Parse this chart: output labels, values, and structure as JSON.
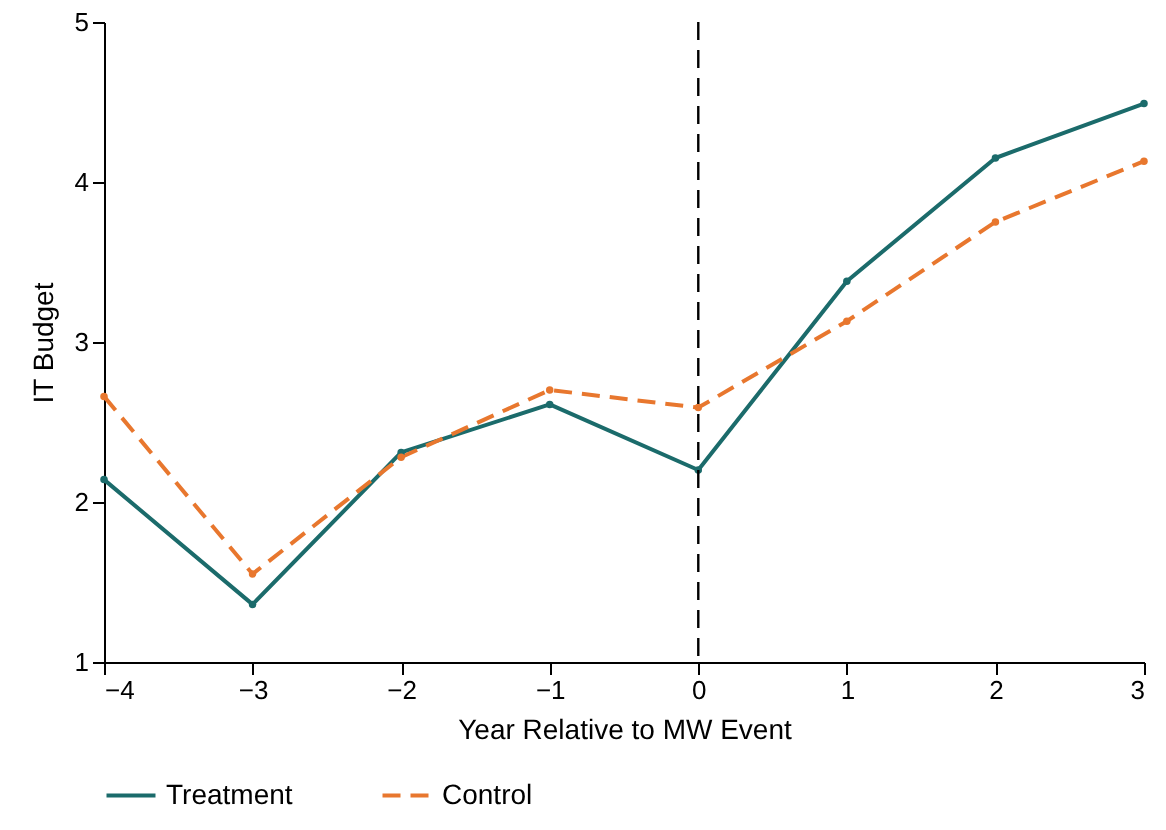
{
  "chart_data": {
    "type": "line",
    "xlabel": "Year Relative to MW Event",
    "ylabel": "IT Budget",
    "x": [
      -4,
      -3,
      -2,
      -1,
      0,
      1,
      2,
      3
    ],
    "series": [
      {
        "name": "Treatment",
        "color": "#1b6b6b",
        "line_style": "solid",
        "values": [
          2.14,
          1.36,
          2.31,
          2.61,
          2.2,
          3.38,
          4.15,
          4.49
        ]
      },
      {
        "name": "Control",
        "color": "#e8772e",
        "line_style": "dashed",
        "values": [
          2.66,
          1.55,
          2.28,
          2.7,
          2.59,
          3.13,
          3.75,
          4.13
        ]
      }
    ],
    "xlim": [
      -4,
      3
    ],
    "xticks": [
      -4,
      -3,
      -2,
      -1,
      0,
      1,
      2,
      3
    ],
    "ylim": [
      1,
      5
    ],
    "yticks": [
      1,
      2,
      3,
      4,
      5
    ],
    "ref_lines": [
      {
        "axis": "x",
        "value": 0,
        "color": "#000000",
        "line_style": "dashed"
      }
    ],
    "grid": false,
    "legend": "bottom",
    "marker": "circle"
  }
}
